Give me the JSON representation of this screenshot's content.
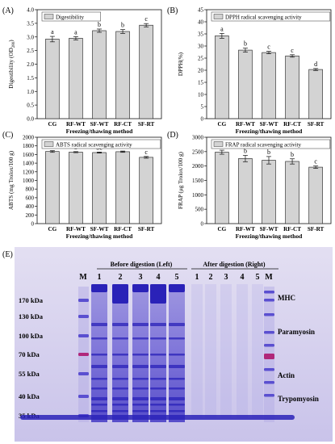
{
  "chart_data": [
    {
      "panel_label": "(A)",
      "type": "bar",
      "title": "Digestibility",
      "xlabel": "Freezing/thawing method",
      "ylabel": "Digestibility (OD",
      "ylabel_sub": "280",
      "ylabel_tail": ")",
      "categories": [
        "CG",
        "RF-WT",
        "SF-WT",
        "RF-CT",
        "SF-RT"
      ],
      "values": [
        2.92,
        2.95,
        3.23,
        3.2,
        3.43
      ],
      "errors": [
        0.1,
        0.06,
        0.06,
        0.07,
        0.06
      ],
      "letters": [
        "a",
        "a",
        "b",
        "b",
        "c"
      ],
      "ylim": [
        0,
        4.0
      ],
      "yticks": [
        "0.0",
        "0.5",
        "1.0",
        "1.5",
        "2.0",
        "2.5",
        "3.0",
        "3.5",
        "4.0"
      ],
      "legend": "top-left"
    },
    {
      "panel_label": "(B)",
      "type": "bar",
      "title": "DPPH radical scavenging activity",
      "xlabel": "Freezing/thawing method",
      "ylabel": "DPPH(%)",
      "categories": [
        "CG",
        "RF-WT",
        "SF-WT",
        "RF-CT",
        "SF-RT"
      ],
      "values": [
        34.2,
        28.3,
        27.3,
        25.9,
        20.3
      ],
      "errors": [
        1.0,
        0.8,
        0.5,
        0.5,
        0.4
      ],
      "letters": [
        "a",
        "b",
        "c",
        "c",
        "d"
      ],
      "ylim": [
        0,
        45
      ],
      "yticks": [
        "0",
        "5",
        "10",
        "15",
        "20",
        "25",
        "30",
        "35",
        "40",
        "45"
      ],
      "legend": "top-left"
    },
    {
      "panel_label": "(C)",
      "type": "bar",
      "title": "ABTS radical scavenging activity",
      "xlabel": "Freezing/thawing method",
      "ylabel": "ABTS (mg Trolox/100 g)",
      "categories": [
        "CG",
        "RF-WT",
        "SF-WT",
        "RF-CT",
        "SF-RT"
      ],
      "values": [
        1670,
        1655,
        1645,
        1665,
        1535
      ],
      "errors": [
        20,
        12,
        12,
        15,
        20
      ],
      "letters": [
        "a",
        "b",
        "bc",
        "bc",
        "c"
      ],
      "ylim": [
        0,
        2000
      ],
      "yticks": [
        "0",
        "200",
        "400",
        "600",
        "800",
        "1000",
        "1200",
        "1400",
        "1600",
        "1800",
        "2000"
      ],
      "legend": "top-left"
    },
    {
      "panel_label": "(D)",
      "type": "bar",
      "title": "FRAP radical scavenging activity",
      "xlabel": "Freezing/thawing method",
      "ylabel": "FRAP (μg Trolox/100 g)",
      "categories": [
        "CG",
        "RF-WT",
        "SF-WT",
        "RF-CT",
        "SF-RT"
      ],
      "values": [
        2480,
        2260,
        2200,
        2160,
        1960
      ],
      "errors": [
        70,
        110,
        130,
        90,
        40
      ],
      "letters": [
        "a",
        "b",
        "b",
        "b",
        "c"
      ],
      "ylim": [
        0,
        3000
      ],
      "yticks": [
        "0",
        "500",
        "1000",
        "1500",
        "2000",
        "2500",
        "3000"
      ],
      "legend": "top-left"
    }
  ],
  "colors": {
    "bar_fill": "#d3d3d3",
    "bar_stroke": "#333333",
    "axis": "#111111",
    "gel_background": "#e9e5f3",
    "band_dark": "#2a22b8",
    "band_mid": "#5a4fd0",
    "band_light": "#9c94e3",
    "marker_magenta": "#b0287a"
  },
  "gel": {
    "panel_label": "(E)",
    "before_label": "Before digestion (Left)",
    "after_label": "After digestion (Right)",
    "marker_lane_label": "M",
    "lane_numbers_before": [
      "1",
      "2",
      "3",
      "4",
      "5"
    ],
    "lane_numbers_after": [
      "1",
      "2",
      "3",
      "4",
      "5"
    ],
    "mw_labels": [
      "170 kDa",
      "130 kDa",
      "100 kDa",
      "70 kDa",
      "55 kDa",
      "40 kDa",
      "35 kDa"
    ],
    "band_labels": [
      "MHC",
      "Paramyosin",
      "Actin",
      "Trypomyosin"
    ]
  }
}
